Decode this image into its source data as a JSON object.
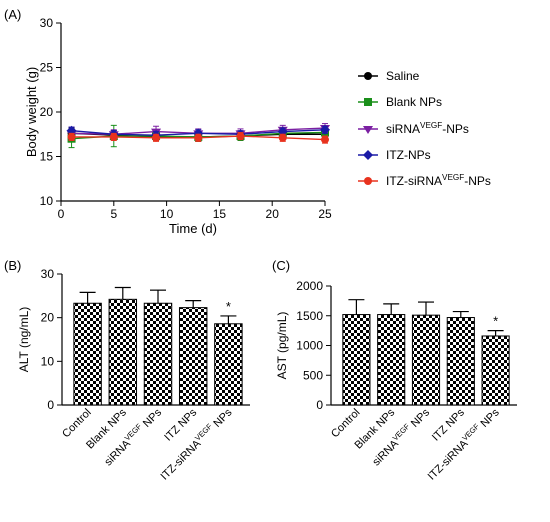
{
  "panels": {
    "a": "(A)",
    "b": "(B)",
    "c": "(C)"
  },
  "chart_data": [
    {
      "panel": "(A)",
      "type": "line",
      "xlabel": "Time (d)",
      "ylabel": "Body weight (g)",
      "xlim": [
        0,
        25
      ],
      "ylim": [
        10,
        30
      ],
      "x_ticks": [
        0,
        5,
        10,
        15,
        20,
        25
      ],
      "y_ticks": [
        10,
        15,
        20,
        25,
        30
      ],
      "x": [
        1,
        5,
        9,
        13,
        17,
        21,
        25
      ],
      "legend_position": "right",
      "series": [
        {
          "name": "Saline",
          "marker": "circle",
          "color": "#000000",
          "values": [
            17.6,
            17.4,
            17.2,
            17.2,
            17.3,
            17.5,
            17.5
          ],
          "error": [
            0.6,
            0.5,
            0.4,
            0.5,
            0.5,
            0.5,
            0.5
          ]
        },
        {
          "name": "Blank NPs",
          "marker": "square",
          "color": "#1a8f1a",
          "values": [
            17.0,
            17.3,
            17.3,
            17.2,
            17.3,
            17.6,
            17.7
          ],
          "error": [
            1.0,
            1.2,
            0.5,
            0.5,
            0.5,
            0.5,
            0.5
          ]
        },
        {
          "name_main": "siRNA",
          "name_sup": "VEGF",
          "name_tail": "-NPs",
          "marker": "triangle-down",
          "color": "#7b1fa2",
          "values": [
            17.6,
            17.5,
            17.8,
            17.6,
            17.6,
            18.0,
            18.2
          ],
          "error": [
            0.7,
            0.5,
            0.6,
            0.5,
            0.5,
            0.5,
            0.5
          ]
        },
        {
          "name": "ITZ-NPs",
          "marker": "diamond",
          "color": "#1a1aa6",
          "values": [
            17.9,
            17.5,
            17.4,
            17.6,
            17.5,
            17.8,
            18.0
          ],
          "error": [
            0.4,
            0.4,
            0.4,
            0.4,
            0.4,
            0.4,
            0.4
          ]
        },
        {
          "name_main": "ITZ-siRNA",
          "name_sup": "VEGF",
          "name_tail": "-NPs",
          "marker": "circle",
          "color": "#e8321e",
          "values": [
            17.2,
            17.2,
            17.1,
            17.1,
            17.3,
            17.1,
            16.9
          ],
          "error": [
            0.4,
            0.4,
            0.4,
            0.4,
            0.4,
            0.4,
            0.4
          ]
        }
      ]
    },
    {
      "panel": "(B)",
      "type": "bar",
      "ylabel": "ALT (ng/mL)",
      "ylim": [
        0,
        30
      ],
      "y_ticks": [
        0,
        10,
        20,
        30
      ],
      "categories": [
        {
          "main": "Control",
          "sup": "",
          "tail": ""
        },
        {
          "main": "Blank NPs",
          "sup": "",
          "tail": ""
        },
        {
          "main": "siRNA",
          "sup": "VEGF",
          "tail": " NPs"
        },
        {
          "main": "ITZ NPs",
          "sup": "",
          "tail": ""
        },
        {
          "main": "ITZ-siRNA",
          "sup": "VEGF",
          "tail": " NPs"
        }
      ],
      "values": [
        23.3,
        24.2,
        23.3,
        22.3,
        18.6
      ],
      "error": [
        2.5,
        2.7,
        3.0,
        1.6,
        1.8
      ],
      "significance": [
        "",
        "",
        "",
        "",
        "*"
      ],
      "fill": "checkerboard"
    },
    {
      "panel": "(C)",
      "type": "bar",
      "ylabel": "AST (pg/mL)",
      "ylim": [
        0,
        2000
      ],
      "y_ticks": [
        0,
        500,
        1000,
        1500,
        2000
      ],
      "categories": [
        {
          "main": "Control",
          "sup": "",
          "tail": ""
        },
        {
          "main": "Blank NPs",
          "sup": "",
          "tail": ""
        },
        {
          "main": "siRNA",
          "sup": "VEGF",
          "tail": " NPs"
        },
        {
          "main": "ITZ NPs",
          "sup": "",
          "tail": ""
        },
        {
          "main": "ITZ-siRNA",
          "sup": "VEGF",
          "tail": " NPs"
        }
      ],
      "values": [
        1520,
        1520,
        1510,
        1470,
        1160
      ],
      "error": [
        250,
        180,
        220,
        100,
        90
      ],
      "significance": [
        "",
        "",
        "",
        "",
        "*"
      ],
      "fill": "checkerboard"
    }
  ]
}
